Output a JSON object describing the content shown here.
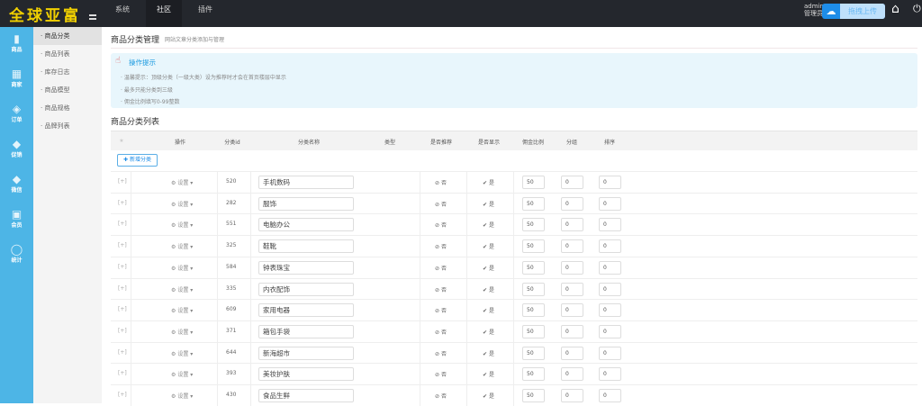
{
  "header": {
    "logo": "全球亚富",
    "nav": [
      "系统",
      "社区",
      "插件"
    ],
    "active_nav": "社区",
    "user": "admin",
    "role": "管理员",
    "upload_label": "拖拽上传",
    "colors": {
      "bg": "#24272d",
      "logo": "#f1d000",
      "accent": "#1e8de8"
    }
  },
  "sidebar": {
    "items": [
      {
        "label": "商品",
        "icon": "bag-icon"
      },
      {
        "label": "商家",
        "icon": "store-icon"
      },
      {
        "label": "订单",
        "icon": "order-icon"
      },
      {
        "label": "促销",
        "icon": "tag-icon"
      },
      {
        "label": "微信",
        "icon": "wechat-icon"
      },
      {
        "label": "会员",
        "icon": "member-icon"
      },
      {
        "label": "统计",
        "icon": "chart-icon"
      }
    ]
  },
  "submenu": {
    "items": [
      "商品分类",
      "商品列表",
      "库存日志",
      "商品模型",
      "商品规格",
      "品牌列表"
    ],
    "active": "商品分类"
  },
  "page": {
    "title": "商品分类管理",
    "subtitle": "网站文章分类添加与管理"
  },
  "tips": {
    "title": "操作提示",
    "lines": [
      "温馨提示：顶级分类（一级大类）设为推荐时才会在首页楼层中显示",
      "最多只能分类到三级",
      "佣金比例填写0-99整数"
    ]
  },
  "list": {
    "title": "商品分类列表",
    "add_label": "新增分类",
    "columns": [
      "操作",
      "分类id",
      "分类名称",
      "类型",
      "是否推荐",
      "是否显示",
      "佣金比例",
      "分组",
      "排序"
    ],
    "settings_label": "设置",
    "toggle": "[+]",
    "no": "否",
    "yes": "是",
    "rows": [
      {
        "id": "520",
        "name": "手机数码",
        "rec": "否",
        "show": "是",
        "rate": "50",
        "group": "0",
        "sort": "0"
      },
      {
        "id": "282",
        "name": "服饰",
        "rec": "否",
        "show": "是",
        "rate": "50",
        "group": "0",
        "sort": "0"
      },
      {
        "id": "551",
        "name": "电脑办公",
        "rec": "否",
        "show": "是",
        "rate": "50",
        "group": "0",
        "sort": "0"
      },
      {
        "id": "325",
        "name": "鞋靴",
        "rec": "否",
        "show": "是",
        "rate": "50",
        "group": "0",
        "sort": "0"
      },
      {
        "id": "584",
        "name": "钟表珠宝",
        "rec": "否",
        "show": "是",
        "rate": "50",
        "group": "0",
        "sort": "0"
      },
      {
        "id": "335",
        "name": "内衣配饰",
        "rec": "否",
        "show": "是",
        "rate": "50",
        "group": "0",
        "sort": "0"
      },
      {
        "id": "609",
        "name": "家用电器",
        "rec": "否",
        "show": "是",
        "rate": "50",
        "group": "0",
        "sort": "0"
      },
      {
        "id": "371",
        "name": "箱包手袋",
        "rec": "否",
        "show": "是",
        "rate": "50",
        "group": "0",
        "sort": "0"
      },
      {
        "id": "644",
        "name": "新海超市",
        "rec": "否",
        "show": "是",
        "rate": "50",
        "group": "0",
        "sort": "0"
      },
      {
        "id": "393",
        "name": "美妆护肤",
        "rec": "否",
        "show": "是",
        "rate": "50",
        "group": "0",
        "sort": "0"
      },
      {
        "id": "430",
        "name": "食品生鲜",
        "rec": "否",
        "show": "是",
        "rate": "50",
        "group": "0",
        "sort": "0"
      }
    ]
  }
}
